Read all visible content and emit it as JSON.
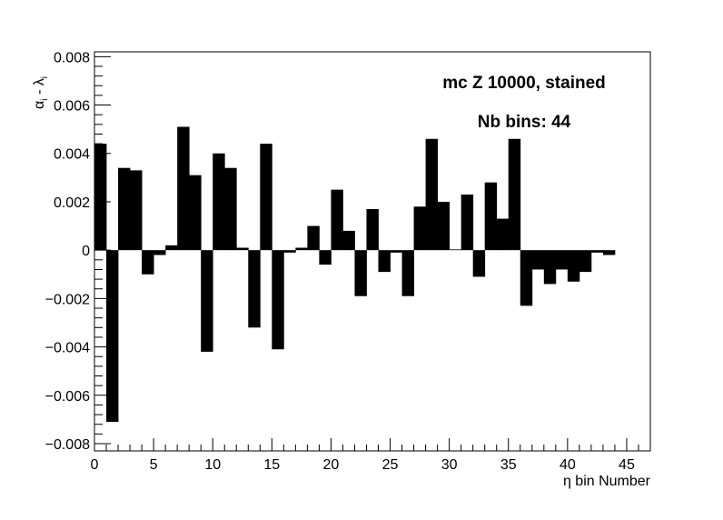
{
  "chart_data": {
    "type": "bar",
    "xlabel": "η bin Number",
    "ylabel": "αi - λi",
    "ylabel_parts": {
      "alpha": "α",
      "i1": "i",
      "dash": " - ",
      "lambda": "λ",
      "i2": "i"
    },
    "xlim": [
      0,
      47
    ],
    "ylim": [
      -0.0083,
      0.0082
    ],
    "x_ticks": [
      0,
      5,
      10,
      15,
      20,
      25,
      30,
      35,
      40,
      45
    ],
    "x_tick_labels": [
      "0",
      "5",
      "10",
      "15",
      "20",
      "25",
      "30",
      "35",
      "40",
      "45"
    ],
    "y_ticks": [
      -0.008,
      -0.006,
      -0.004,
      -0.002,
      0,
      0.002,
      0.004,
      0.006,
      0.008
    ],
    "y_tick_labels": [
      "−0.008",
      "−0.006",
      "−0.004",
      "−0.002",
      "0",
      "0.002",
      "0.004",
      "0.006",
      "0.008"
    ],
    "annotations": [
      "mc Z 10000, stained",
      "Nb bins: 44"
    ],
    "bin_width": 1,
    "x": [
      0,
      1,
      2,
      3,
      4,
      5,
      6,
      7,
      8,
      9,
      10,
      11,
      12,
      13,
      14,
      15,
      16,
      17,
      18,
      19,
      20,
      21,
      22,
      23,
      24,
      25,
      26,
      27,
      28,
      29,
      30,
      31,
      32,
      33,
      34,
      35,
      36,
      37,
      38,
      39,
      40,
      41,
      42,
      43
    ],
    "values": [
      0.0044,
      -0.0071,
      0.0034,
      0.0033,
      -0.001,
      -0.0002,
      0.0002,
      0.0051,
      0.0031,
      -0.0042,
      0.004,
      0.0034,
      0.0001,
      -0.0032,
      0.0044,
      -0.0041,
      -0.0001,
      0.0001,
      0.001,
      -0.0006,
      0.0025,
      0.0008,
      -0.0019,
      0.0017,
      -0.0009,
      -0.0001,
      -0.0019,
      0.0018,
      0.0046,
      0.002,
      3e-05,
      0.0023,
      -0.0011,
      0.0028,
      0.0013,
      0.0046,
      -0.0023,
      -0.0008,
      -0.0014,
      -0.0008,
      -0.0013,
      -0.0009,
      -0.0001,
      -0.0002
    ],
    "grid": false,
    "bar_color": "#000000"
  }
}
